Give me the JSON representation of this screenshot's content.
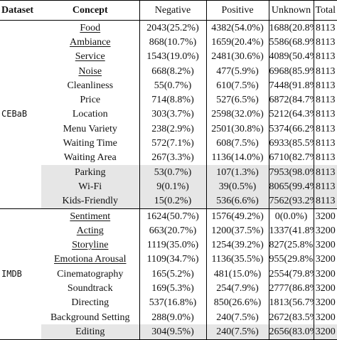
{
  "headers": {
    "dataset": "Dataset",
    "concept": "Concept",
    "negative": "Negative",
    "positive": "Positive",
    "unknown": "Unknown",
    "total": "Total"
  },
  "groups": [
    {
      "dataset": "CEBaB",
      "rows": [
        {
          "concept": "Food",
          "negative": "2043(25.2%)",
          "positive": "4382(54.0%)",
          "unknown": "1688(20.8%)",
          "total": "8113",
          "underline": true,
          "shaded": false
        },
        {
          "concept": "Ambiance",
          "negative": "868(10.7%)",
          "positive": "1659(20.4%)",
          "unknown": "5586(68.9%)",
          "total": "8113",
          "underline": true,
          "shaded": false
        },
        {
          "concept": "Service",
          "negative": "1543(19.0%)",
          "positive": "2481(30.6%)",
          "unknown": "4089(50.4%)",
          "total": "8113",
          "underline": true,
          "shaded": false
        },
        {
          "concept": "Noise",
          "negative": "668(8.2%)",
          "positive": "477(5.9%)",
          "unknown": "6968(85.9%)",
          "total": "8113",
          "underline": true,
          "shaded": false
        },
        {
          "concept": "Cleanliness",
          "negative": "55(0.7%)",
          "positive": "610(7.5%)",
          "unknown": "7448(91.8%)",
          "total": "8113",
          "underline": false,
          "shaded": false
        },
        {
          "concept": "Price",
          "negative": "714(8.8%)",
          "positive": "527(6.5%)",
          "unknown": "6872(84.7%)",
          "total": "8113",
          "underline": false,
          "shaded": false
        },
        {
          "concept": "Location",
          "negative": "303(3.7%)",
          "positive": "2598(32.0%)",
          "unknown": "5212(64.3%)",
          "total": "8113",
          "underline": false,
          "shaded": false
        },
        {
          "concept": "Menu Variety",
          "negative": "238(2.9%)",
          "positive": "2501(30.8%)",
          "unknown": "5374(66.2%)",
          "total": "8113",
          "underline": false,
          "shaded": false
        },
        {
          "concept": "Waiting Time",
          "negative": "572(7.1%)",
          "positive": "608(7.5%)",
          "unknown": "6933(85.5%)",
          "total": "8113",
          "underline": false,
          "shaded": false
        },
        {
          "concept": "Waiting Area",
          "negative": "267(3.3%)",
          "positive": "1136(14.0%)",
          "unknown": "6710(82.7%)",
          "total": "8113",
          "underline": false,
          "shaded": false
        },
        {
          "concept": "Parking",
          "negative": "53(0.7%)",
          "positive": "107(1.3%)",
          "unknown": "7953(98.0%)",
          "total": "8113",
          "underline": false,
          "shaded": true
        },
        {
          "concept": "Wi-Fi",
          "negative": "9(0.1%)",
          "positive": "39(0.5%)",
          "unknown": "8065(99.4%)",
          "total": "8113",
          "underline": false,
          "shaded": true
        },
        {
          "concept": "Kids-Friendly",
          "negative": "15(0.2%)",
          "positive": "536(6.6%)",
          "unknown": "7562(93.2%)",
          "total": "8113",
          "underline": false,
          "shaded": true
        }
      ]
    },
    {
      "dataset": "IMDB",
      "rows": [
        {
          "concept": "Sentiment",
          "negative": "1624(50.7%)",
          "positive": "1576(49.2%)",
          "unknown": "0(0.0%)",
          "total": "3200",
          "underline": true,
          "shaded": false
        },
        {
          "concept": "Acting",
          "negative": "663(20.7%)",
          "positive": "1200(37.5%)",
          "unknown": "1337(41.8%)",
          "total": "3200",
          "underline": true,
          "shaded": false
        },
        {
          "concept": "Storyline",
          "negative": "1119(35.0%)",
          "positive": "1254(39.2%)",
          "unknown": "827(25.8%)",
          "total": "3200",
          "underline": true,
          "shaded": false
        },
        {
          "concept": "Emotiona Arousal",
          "negative": "1109(34.7%)",
          "positive": "1136(35.5%)",
          "unknown": "955(29.8%)",
          "total": "3200",
          "underline": true,
          "shaded": false
        },
        {
          "concept": "Cinematography",
          "negative": "165(5.2%)",
          "positive": "481(15.0%)",
          "unknown": "2554(79.8%)",
          "total": "3200",
          "underline": false,
          "shaded": false
        },
        {
          "concept": "Soundtrack",
          "negative": "169(5.3%)",
          "positive": "254(7.9%)",
          "unknown": "2777(86.8%)",
          "total": "3200",
          "underline": false,
          "shaded": false
        },
        {
          "concept": "Directing",
          "negative": "537(16.8%)",
          "positive": "850(26.6%)",
          "unknown": "1813(56.7%)",
          "total": "3200",
          "underline": false,
          "shaded": false
        },
        {
          "concept": "Background Setting",
          "negative": "288(9.0%)",
          "positive": "240(7.5%)",
          "unknown": "2672(83.5%)",
          "total": "3200",
          "underline": false,
          "shaded": false
        },
        {
          "concept": "Editing",
          "negative": "304(9.5%)",
          "positive": "240(7.5%)",
          "unknown": "2656(83.0%)",
          "total": "3200",
          "underline": false,
          "shaded": true
        }
      ]
    }
  ]
}
